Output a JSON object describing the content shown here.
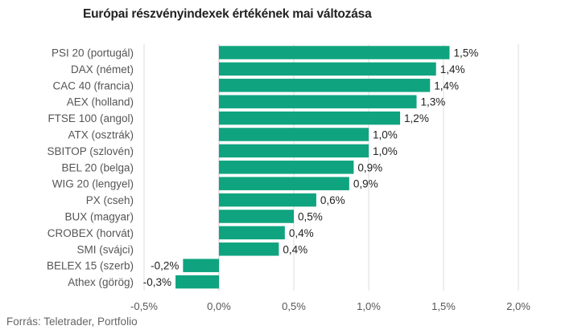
{
  "chart_data": {
    "type": "bar",
    "orientation": "horizontal",
    "title": "Európai részvényindexek értékének mai változása",
    "source": "Forrás: Teletrader, Portfolio",
    "categories": [
      "PSI 20 (portugál)",
      "DAX (német)",
      "CAC 40 (francia)",
      "AEX (holland)",
      "FTSE 100 (angol)",
      "ATX (osztrák)",
      "SBITOP (szlovén)",
      "BEL 20 (belga)",
      "WIG 20 (lengyel)",
      "PX (cseh)",
      "BUX (magyar)",
      "CROBEX (horvát)",
      "SMI (svájci)",
      "BELEX 15 (szerb)",
      "Athex (görög)"
    ],
    "values": [
      1.54,
      1.45,
      1.41,
      1.32,
      1.21,
      1.0,
      1.0,
      0.9,
      0.87,
      0.65,
      0.5,
      0.44,
      0.4,
      -0.24,
      -0.29
    ],
    "value_labels": [
      "1,5%",
      "1,4%",
      "1,4%",
      "1,3%",
      "1,2%",
      "1,0%",
      "1,0%",
      "0,9%",
      "0,9%",
      "0,6%",
      "0,5%",
      "0,4%",
      "0,4%",
      "-0,2%",
      "-0,3%"
    ],
    "xlim": [
      -0.5,
      2.0
    ],
    "x_ticks": [
      -0.5,
      0.0,
      0.5,
      1.0,
      1.5,
      2.0
    ],
    "x_tick_labels": [
      "-0,5%",
      "0,0%",
      "0,5%",
      "1,0%",
      "1,5%",
      "2,0%"
    ],
    "grid": true,
    "bar_color": "#0fa47f",
    "grid_color": "#dddddd"
  }
}
